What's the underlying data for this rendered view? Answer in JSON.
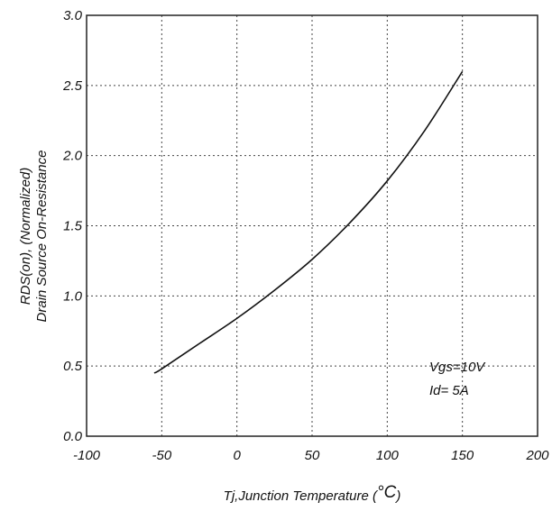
{
  "chart_data": {
    "type": "line",
    "title": "",
    "xlabel_main": "Tj,Junction Temperature (",
    "xlabel_unit": "°C",
    "xlabel_close": ")",
    "ylabel_line1": "RDS(on), (Normalized)",
    "ylabel_line2": "Drain Source On-Resistance",
    "xlim": [
      -100,
      200
    ],
    "ylim": [
      0.0,
      3.0
    ],
    "x_ticks": [
      "-100",
      "-50",
      "0",
      "50",
      "100",
      "150",
      "200"
    ],
    "y_ticks": [
      "0.0",
      "0.5",
      "1.0",
      "1.5",
      "2.0",
      "2.5",
      "3.0"
    ],
    "grid": true,
    "annotations": [
      "Vgs=10V",
      "Id= 5A"
    ],
    "series": [
      {
        "x": [
          -55,
          -50,
          -25,
          0,
          25,
          50,
          75,
          100,
          125,
          150
        ],
        "y": [
          0.45,
          0.48,
          0.66,
          0.84,
          1.04,
          1.26,
          1.52,
          1.82,
          2.18,
          2.6
        ]
      }
    ]
  }
}
